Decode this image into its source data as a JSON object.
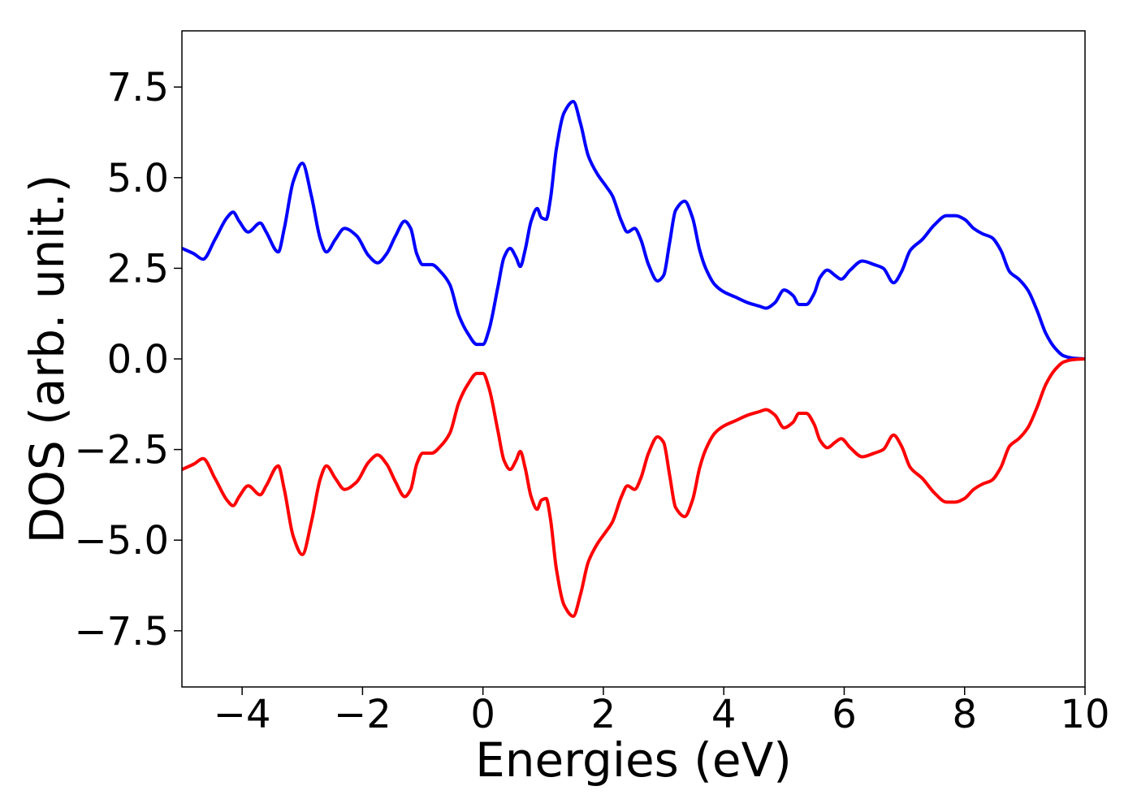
{
  "chart_data": {
    "type": "line",
    "title": "",
    "xlabel": "Energies (eV)",
    "ylabel": "DOS (arb. unit.)",
    "xlim": [
      -5,
      10
    ],
    "ylim": [
      -9.05,
      9.05
    ],
    "grid": false,
    "legend": "none",
    "x_ticks": [
      -4,
      -2,
      0,
      2,
      4,
      6,
      8,
      10
    ],
    "x_tick_labels": [
      "−4",
      "−2",
      "0",
      "2",
      "4",
      "6",
      "8",
      "10"
    ],
    "y_ticks": [
      7.5,
      5.0,
      2.5,
      0.0,
      -2.5,
      -5.0,
      -7.5
    ],
    "y_tick_labels": [
      "7.5",
      "5.0",
      "2.5",
      "0.0",
      "−2.5",
      "−5.0",
      "−7.5"
    ],
    "series": [
      {
        "color": "#0000ff",
        "x": [
          -5.0,
          -4.8,
          -4.65,
          -4.45,
          -4.25,
          -4.15,
          -4.05,
          -3.9,
          -3.7,
          -3.6,
          -3.4,
          -3.3,
          -3.15,
          -3.0,
          -2.85,
          -2.7,
          -2.6,
          -2.45,
          -2.3,
          -2.1,
          -1.9,
          -1.75,
          -1.6,
          -1.45,
          -1.3,
          -1.2,
          -1.1,
          -1.0,
          -0.85,
          -0.7,
          -0.55,
          -0.4,
          -0.25,
          -0.1,
          0.0,
          0.1,
          0.25,
          0.35,
          0.45,
          0.55,
          0.62,
          0.7,
          0.8,
          0.9,
          0.97,
          1.05,
          1.12,
          1.22,
          1.35,
          1.5,
          1.62,
          1.75,
          1.9,
          2.05,
          2.15,
          2.3,
          2.4,
          2.52,
          2.62,
          2.75,
          2.9,
          3.0,
          3.1,
          3.2,
          3.35,
          3.48,
          3.6,
          3.7,
          3.85,
          4.0,
          4.2,
          4.4,
          4.6,
          4.7,
          4.85,
          5.0,
          5.15,
          5.25,
          5.37,
          5.5,
          5.6,
          5.72,
          5.85,
          5.95,
          6.1,
          6.3,
          6.5,
          6.65,
          6.82,
          6.95,
          7.1,
          7.3,
          7.5,
          7.7,
          7.85,
          8.0,
          8.15,
          8.3,
          8.45,
          8.6,
          8.75,
          8.9,
          9.05,
          9.2,
          9.35,
          9.5,
          9.65,
          9.8,
          10.0
        ],
        "values": [
          3.05,
          2.9,
          2.75,
          3.3,
          3.9,
          4.05,
          3.8,
          3.5,
          3.75,
          3.5,
          2.95,
          3.6,
          4.9,
          5.4,
          4.5,
          3.3,
          2.95,
          3.3,
          3.6,
          3.4,
          2.85,
          2.65,
          2.9,
          3.4,
          3.8,
          3.6,
          2.9,
          2.6,
          2.6,
          2.4,
          2.05,
          1.2,
          0.7,
          0.4,
          0.4,
          0.8,
          2.0,
          2.8,
          3.05,
          2.8,
          2.55,
          3.0,
          3.8,
          4.15,
          3.9,
          3.85,
          4.4,
          5.8,
          6.8,
          7.1,
          6.5,
          5.6,
          5.1,
          4.75,
          4.5,
          3.8,
          3.5,
          3.6,
          3.3,
          2.6,
          2.15,
          2.3,
          3.2,
          4.1,
          4.35,
          3.9,
          3.0,
          2.5,
          2.05,
          1.85,
          1.7,
          1.55,
          1.45,
          1.4,
          1.55,
          1.9,
          1.75,
          1.5,
          1.5,
          1.8,
          2.25,
          2.45,
          2.3,
          2.2,
          2.45,
          2.7,
          2.6,
          2.5,
          2.1,
          2.4,
          3.0,
          3.3,
          3.7,
          3.95,
          3.95,
          3.85,
          3.6,
          3.45,
          3.35,
          3.0,
          2.4,
          2.2,
          1.9,
          1.35,
          0.7,
          0.3,
          0.08,
          0.02,
          0.0
        ]
      },
      {
        "color": "#ff0000",
        "x": [
          -5.0,
          -4.8,
          -4.65,
          -4.45,
          -4.25,
          -4.15,
          -4.05,
          -3.9,
          -3.7,
          -3.6,
          -3.4,
          -3.3,
          -3.15,
          -3.0,
          -2.85,
          -2.7,
          -2.6,
          -2.45,
          -2.3,
          -2.1,
          -1.9,
          -1.75,
          -1.6,
          -1.45,
          -1.3,
          -1.2,
          -1.1,
          -1.0,
          -0.85,
          -0.7,
          -0.55,
          -0.4,
          -0.25,
          -0.1,
          0.0,
          0.1,
          0.25,
          0.35,
          0.45,
          0.55,
          0.62,
          0.7,
          0.8,
          0.9,
          0.97,
          1.05,
          1.12,
          1.22,
          1.35,
          1.5,
          1.62,
          1.75,
          1.9,
          2.05,
          2.15,
          2.3,
          2.4,
          2.52,
          2.62,
          2.75,
          2.9,
          3.0,
          3.1,
          3.2,
          3.35,
          3.48,
          3.6,
          3.7,
          3.85,
          4.0,
          4.2,
          4.4,
          4.6,
          4.7,
          4.85,
          5.0,
          5.15,
          5.25,
          5.37,
          5.5,
          5.6,
          5.72,
          5.85,
          5.95,
          6.1,
          6.3,
          6.5,
          6.65,
          6.82,
          6.95,
          7.1,
          7.3,
          7.5,
          7.7,
          7.85,
          8.0,
          8.15,
          8.3,
          8.45,
          8.6,
          8.75,
          8.9,
          9.05,
          9.2,
          9.35,
          9.5,
          9.65,
          9.8,
          10.0
        ],
        "values": [
          -3.05,
          -2.9,
          -2.75,
          -3.3,
          -3.9,
          -4.05,
          -3.8,
          -3.5,
          -3.75,
          -3.5,
          -2.95,
          -3.6,
          -4.9,
          -5.4,
          -4.5,
          -3.3,
          -2.95,
          -3.3,
          -3.6,
          -3.4,
          -2.85,
          -2.65,
          -2.9,
          -3.4,
          -3.8,
          -3.6,
          -2.9,
          -2.6,
          -2.6,
          -2.4,
          -2.05,
          -1.2,
          -0.7,
          -0.4,
          -0.4,
          -0.8,
          -2.0,
          -2.8,
          -3.05,
          -2.8,
          -2.55,
          -3.0,
          -3.8,
          -4.15,
          -3.9,
          -3.85,
          -4.4,
          -5.8,
          -6.8,
          -7.1,
          -6.5,
          -5.6,
          -5.1,
          -4.75,
          -4.5,
          -3.8,
          -3.5,
          -3.6,
          -3.3,
          -2.6,
          -2.15,
          -2.3,
          -3.2,
          -4.1,
          -4.35,
          -3.9,
          -3.0,
          -2.5,
          -2.05,
          -1.85,
          -1.7,
          -1.55,
          -1.45,
          -1.4,
          -1.55,
          -1.9,
          -1.75,
          -1.5,
          -1.5,
          -1.8,
          -2.25,
          -2.45,
          -2.3,
          -2.2,
          -2.45,
          -2.7,
          -2.6,
          -2.5,
          -2.1,
          -2.4,
          -3.0,
          -3.3,
          -3.7,
          -3.95,
          -3.95,
          -3.85,
          -3.6,
          -3.45,
          -3.35,
          -3.0,
          -2.4,
          -2.2,
          -1.9,
          -1.35,
          -0.7,
          -0.3,
          -0.08,
          -0.02,
          0.0
        ]
      }
    ]
  }
}
